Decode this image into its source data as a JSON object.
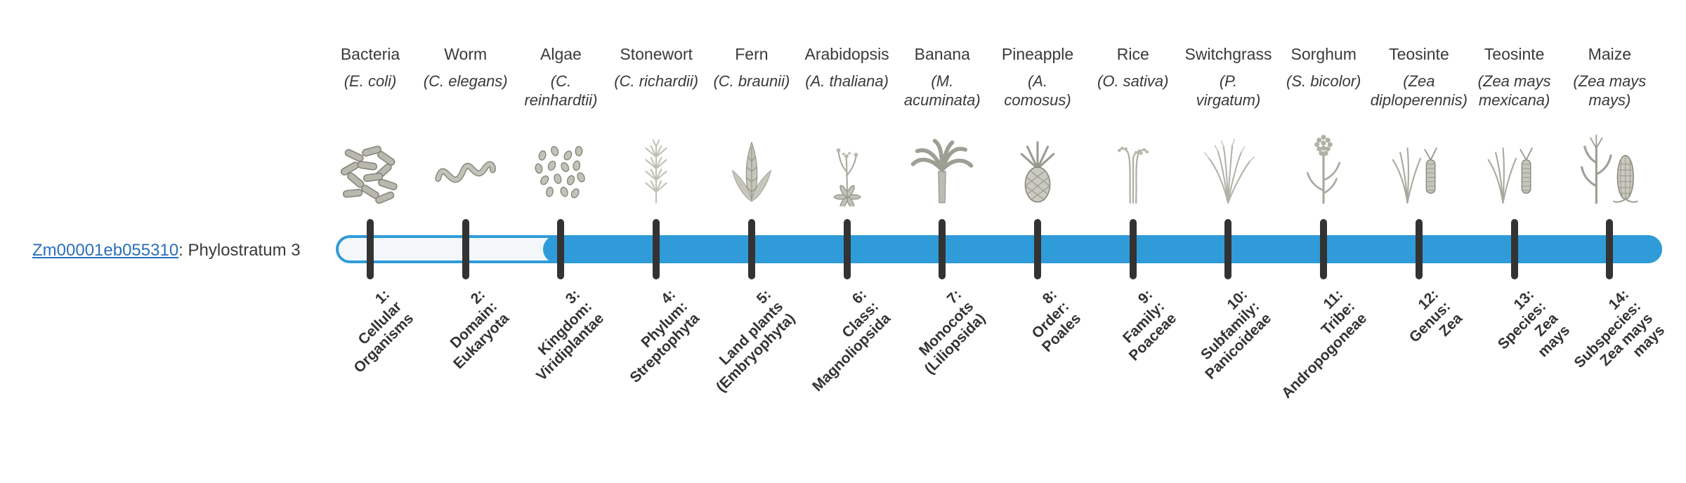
{
  "gene": {
    "id": "Zm00001eb055310",
    "suffix": ": Phylostratum 3"
  },
  "timeline": {
    "fill_start_stratum": 3,
    "num_strata": 14
  },
  "colors": {
    "accent": "#2f9bd8",
    "tick": "#333333",
    "link": "#2a6fba",
    "text": "#3a3a3a",
    "bar-empty": "#f3f7f9"
  },
  "strata": [
    {
      "index": 1,
      "common": "Bacteria",
      "scientific": "(E. coli)",
      "icon": "bacteria-icon",
      "rank_label": "1:\nCellular\nOrganisms"
    },
    {
      "index": 2,
      "common": "Worm",
      "scientific": "(C. elegans)",
      "icon": "worm-icon",
      "rank_label": "2:\nDomain:\nEukaryota"
    },
    {
      "index": 3,
      "common": "Algae",
      "scientific": "(C.\nreinhardtii)",
      "icon": "algae-icon",
      "rank_label": "3:\nKingdom:\nViridiplantae"
    },
    {
      "index": 4,
      "common": "Stonewort",
      "scientific": "(C. richardii)",
      "icon": "stonewort-icon",
      "rank_label": "4:\nPhylum:\nStreptophyta"
    },
    {
      "index": 5,
      "common": "Fern",
      "scientific": "(C. braunii)",
      "icon": "fern-icon",
      "rank_label": "5:\nLand plants\n(Embryophyta)"
    },
    {
      "index": 6,
      "common": "Arabidopsis",
      "scientific": "(A. thaliana)",
      "icon": "arabidopsis-icon",
      "rank_label": "6:\nClass:\nMagnoliopsida"
    },
    {
      "index": 7,
      "common": "Banana",
      "scientific": "(M.\nacuminata)",
      "icon": "banana-icon",
      "rank_label": "7:\nMonocots\n(Liliopsida)"
    },
    {
      "index": 8,
      "common": "Pineapple",
      "scientific": "(A.\ncomosus)",
      "icon": "pineapple-icon",
      "rank_label": "8:\nOrder:\nPoales"
    },
    {
      "index": 9,
      "common": "Rice",
      "scientific": "(O. sativa)",
      "icon": "rice-icon",
      "rank_label": "9:\nFamily:\nPoaceae"
    },
    {
      "index": 10,
      "common": "Switchgrass",
      "scientific": "(P.\nvirgatum)",
      "icon": "switchgrass-icon",
      "rank_label": "10:\nSubfamily:\nPanicoideae"
    },
    {
      "index": 11,
      "common": "Sorghum",
      "scientific": "(S. bicolor)",
      "icon": "sorghum-icon",
      "rank_label": "11:\nTribe:\nAndropogoneae"
    },
    {
      "index": 12,
      "common": "Teosinte",
      "scientific": "(Zea\ndiploperennis)",
      "icon": "teosinte-icon",
      "rank_label": "12:\nGenus:\nZea"
    },
    {
      "index": 13,
      "common": "Teosinte",
      "scientific": "(Zea mays\nmexicana)",
      "icon": "teosinte-icon",
      "rank_label": "13:\nSpecies:\nZea\nmays"
    },
    {
      "index": 14,
      "common": "Maize",
      "scientific": "(Zea mays\nmays)",
      "icon": "maize-icon",
      "rank_label": "14:\nSubspecies:\nZea mays\nmays"
    }
  ]
}
